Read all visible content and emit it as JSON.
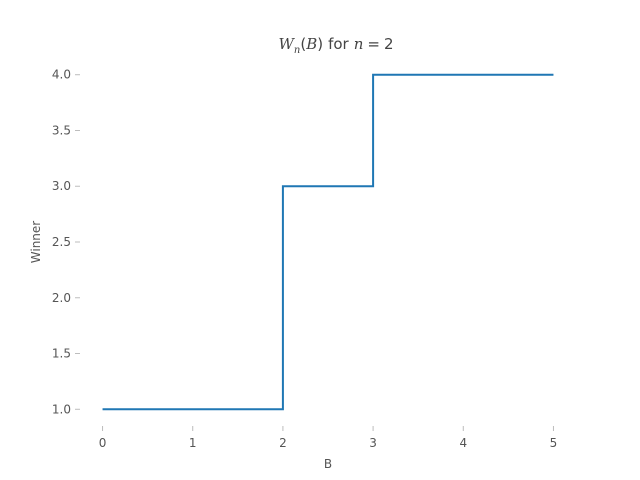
{
  "chart_data": {
    "type": "line",
    "step": "post",
    "title": {
      "symbol": "W",
      "subscript": "n",
      "argument": "B",
      "connector": "for",
      "variable": "n",
      "equals": "=",
      "value": "2"
    },
    "xlabel": "B",
    "ylabel": "Winner",
    "xlim": [
      -0.25,
      5.25
    ],
    "ylim": [
      0.85,
      4.15
    ],
    "xticks": [
      0,
      1,
      2,
      3,
      4,
      5
    ],
    "yticks": [
      1.0,
      1.5,
      2.0,
      2.5,
      3.0,
      3.5,
      4.0
    ],
    "xtick_labels": [
      "0",
      "1",
      "2",
      "3",
      "4",
      "5"
    ],
    "ytick_labels": [
      "1.0",
      "1.5",
      "2.0",
      "2.5",
      "3.0",
      "3.5",
      "4.0"
    ],
    "grid": false,
    "series": [
      {
        "x": [
          0,
          2,
          2,
          3,
          3,
          5
        ],
        "y": [
          1,
          1,
          3,
          3,
          4,
          4
        ],
        "color": "#1f77b4"
      }
    ]
  }
}
